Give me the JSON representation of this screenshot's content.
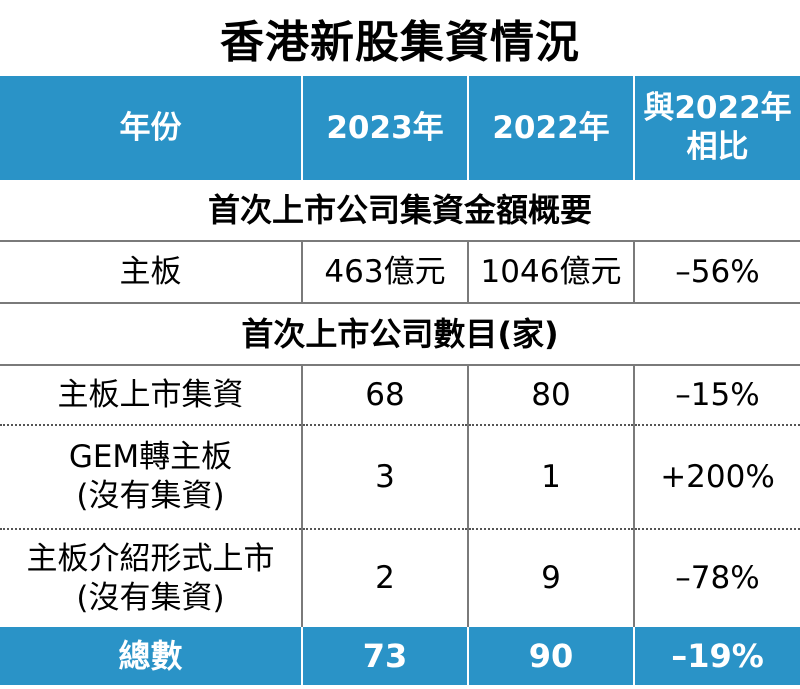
{
  "title": "香港新股集資情況",
  "header": {
    "col1": "年份",
    "col2": "2023年",
    "col3": "2022年",
    "col4_line1": "與2022年",
    "col4_line2": "相比"
  },
  "section1": {
    "heading": "首次上市公司集資金額概要",
    "rows": [
      {
        "label": "主板",
        "y2023": "463億元",
        "y2022": "1046億元",
        "change": "–56%"
      }
    ]
  },
  "section2": {
    "heading": "首次上市公司數目(家)",
    "rows": [
      {
        "label": "主板上市集資",
        "y2023": "68",
        "y2022": "80",
        "change": "–15%"
      },
      {
        "label_line1": "GEM轉主板",
        "label_line2": "(沒有集資)",
        "y2023": "3",
        "y2022": "1",
        "change": "+200%"
      },
      {
        "label_line1": "主板介紹形式上市",
        "label_line2": "(沒有集資)",
        "y2023": "2",
        "y2022": "9",
        "change": "–78%"
      }
    ]
  },
  "total": {
    "label": "總數",
    "y2023": "73",
    "y2022": "90",
    "change": "–19%"
  },
  "colors": {
    "header_bg": "#2a93c7",
    "header_text": "#ffffff",
    "grid": "#7a7a7a"
  }
}
